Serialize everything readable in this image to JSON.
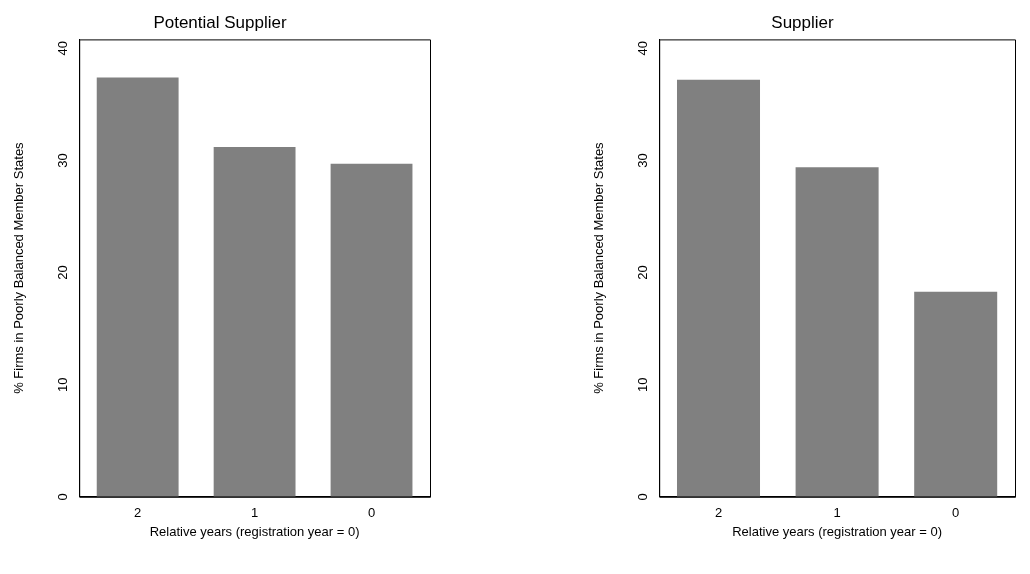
{
  "chart_data": [
    {
      "type": "bar",
      "title": "Potential Supplier",
      "xlabel": "Relative years (registration year = 0)",
      "ylabel": "% Firms in Poorly Balanced Member States",
      "categories": [
        "2",
        "1",
        "0"
      ],
      "values": [
        37.4,
        31.2,
        29.7
      ],
      "color": "#808080",
      "ylim": [
        0,
        40.8
      ],
      "yticks": [
        0,
        10,
        20,
        30,
        40
      ],
      "grid": false
    },
    {
      "type": "bar",
      "title": "Supplier",
      "xlabel": "Relative years (registration year = 0)",
      "ylabel": "% Firms in Poorly Balanced Member States",
      "categories": [
        "2",
        "1",
        "0"
      ],
      "values": [
        37.2,
        29.4,
        18.3
      ],
      "color": "#808080",
      "ylim": [
        0,
        40.8
      ],
      "yticks": [
        0,
        10,
        20,
        30,
        40
      ],
      "grid": false
    }
  ]
}
